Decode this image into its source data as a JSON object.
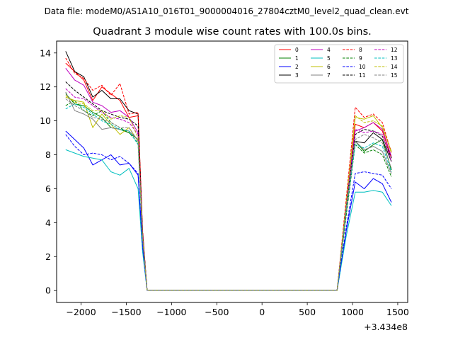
{
  "chart_data": {
    "type": "line",
    "suptitle": "Data file: modeM0/AS1A10_016T01_9000004016_27804cztM0_level2_quad_clean.evt",
    "title": "Quadrant 3 module wise count rates with 100.0s bins.",
    "xlabel": "",
    "ylabel": "",
    "x_offset_label": "+3.434e8",
    "xlim": [
      -2270,
      1610
    ],
    "ylim": [
      -0.7,
      14.7
    ],
    "xticks": [
      -2000,
      -1500,
      -1000,
      -500,
      0,
      500,
      1000,
      1500
    ],
    "xtick_labels": [
      "−2000",
      "−1500",
      "−1000",
      "−500",
      "0",
      "500",
      "1000",
      "1500"
    ],
    "yticks": [
      0,
      2,
      4,
      6,
      8,
      10,
      12,
      14
    ],
    "ytick_labels": [
      "0",
      "2",
      "4",
      "6",
      "8",
      "10",
      "12",
      "14"
    ],
    "legend_position": "top-right",
    "x": [
      -2170,
      -2070,
      -1970,
      -1870,
      -1770,
      -1670,
      -1570,
      -1470,
      -1370,
      -1320,
      -1270,
      -1170,
      -1070,
      -970,
      -870,
      -770,
      -670,
      -570,
      -470,
      -370,
      -270,
      -170,
      -70,
      30,
      130,
      230,
      330,
      430,
      530,
      630,
      730,
      830,
      930,
      1030,
      1130,
      1230,
      1330,
      1430
    ],
    "series": [
      {
        "name": "0",
        "color": "#ff0000",
        "style": "solid",
        "values": [
          13.4,
          12.9,
          12.4,
          11.2,
          12.0,
          11.6,
          11.2,
          10.2,
          10.3,
          3.5,
          0.02,
          0.02,
          0.02,
          0.02,
          0.02,
          0.02,
          0.02,
          0.02,
          0.02,
          0.02,
          0.02,
          0.02,
          0.02,
          0.02,
          0.02,
          0.02,
          0.02,
          0.02,
          0.02,
          0.02,
          0.02,
          0.02,
          5.0,
          9.8,
          9.6,
          9.9,
          9.4,
          7.8
        ]
      },
      {
        "name": "1",
        "color": "#008000",
        "style": "solid",
        "values": [
          11.6,
          11.0,
          10.9,
          10.5,
          10.2,
          9.6,
          9.5,
          9.3,
          8.9,
          3.2,
          0.02,
          0.02,
          0.02,
          0.02,
          0.02,
          0.02,
          0.02,
          0.02,
          0.02,
          0.02,
          0.02,
          0.02,
          0.02,
          0.02,
          0.02,
          0.02,
          0.02,
          0.02,
          0.02,
          0.02,
          0.02,
          0.02,
          4.6,
          8.8,
          8.2,
          8.6,
          8.9,
          7.1
        ]
      },
      {
        "name": "2",
        "color": "#0000ff",
        "style": "solid",
        "values": [
          9.4,
          8.9,
          8.4,
          7.4,
          7.7,
          8.0,
          7.4,
          7.5,
          6.8,
          2.6,
          0.02,
          0.02,
          0.02,
          0.02,
          0.02,
          0.02,
          0.02,
          0.02,
          0.02,
          0.02,
          0.02,
          0.02,
          0.02,
          0.02,
          0.02,
          0.02,
          0.02,
          0.02,
          0.02,
          0.02,
          0.02,
          0.02,
          3.5,
          6.4,
          6.0,
          6.6,
          6.3,
          5.2
        ]
      },
      {
        "name": "3",
        "color": "#000000",
        "style": "solid",
        "values": [
          14.1,
          12.9,
          12.6,
          11.4,
          11.8,
          11.3,
          11.3,
          10.6,
          10.4,
          3.5,
          0.02,
          0.02,
          0.02,
          0.02,
          0.02,
          0.02,
          0.02,
          0.02,
          0.02,
          0.02,
          0.02,
          0.02,
          0.02,
          0.02,
          0.02,
          0.02,
          0.02,
          0.02,
          0.02,
          0.02,
          0.02,
          0.02,
          4.8,
          8.8,
          8.7,
          9.3,
          8.9,
          7.6
        ]
      },
      {
        "name": "4",
        "color": "#bf00bf",
        "style": "solid",
        "values": [
          13.1,
          12.4,
          12.1,
          11.1,
          10.9,
          10.5,
          10.6,
          10.2,
          9.3,
          3.3,
          0.02,
          0.02,
          0.02,
          0.02,
          0.02,
          0.02,
          0.02,
          0.02,
          0.02,
          0.02,
          0.02,
          0.02,
          0.02,
          0.02,
          0.02,
          0.02,
          0.02,
          0.02,
          0.02,
          0.02,
          0.02,
          0.02,
          5.0,
          9.4,
          9.6,
          9.9,
          9.5,
          7.9
        ]
      },
      {
        "name": "5",
        "color": "#00bfbf",
        "style": "solid",
        "values": [
          8.3,
          8.1,
          7.9,
          7.8,
          7.7,
          7.0,
          6.8,
          7.2,
          6.0,
          2.3,
          0.02,
          0.02,
          0.02,
          0.02,
          0.02,
          0.02,
          0.02,
          0.02,
          0.02,
          0.02,
          0.02,
          0.02,
          0.02,
          0.02,
          0.02,
          0.02,
          0.02,
          0.02,
          0.02,
          0.02,
          0.02,
          0.02,
          3.2,
          5.8,
          5.8,
          5.9,
          5.8,
          5.0
        ]
      },
      {
        "name": "6",
        "color": "#bfbf00",
        "style": "solid",
        "values": [
          11.4,
          11.2,
          11.1,
          9.6,
          10.4,
          9.8,
          9.2,
          9.6,
          8.8,
          3.2,
          0.02,
          0.02,
          0.02,
          0.02,
          0.02,
          0.02,
          0.02,
          0.02,
          0.02,
          0.02,
          0.02,
          0.02,
          0.02,
          0.02,
          0.02,
          0.02,
          0.02,
          0.02,
          0.02,
          0.02,
          0.02,
          0.02,
          5.0,
          10.2,
          10.1,
          10.3,
          9.6,
          8.2
        ]
      },
      {
        "name": "7",
        "color": "#808080",
        "style": "solid",
        "values": [
          11.7,
          10.6,
          10.4,
          10.1,
          9.5,
          9.6,
          9.5,
          9.4,
          8.9,
          3.2,
          0.02,
          0.02,
          0.02,
          0.02,
          0.02,
          0.02,
          0.02,
          0.02,
          0.02,
          0.02,
          0.02,
          0.02,
          0.02,
          0.02,
          0.02,
          0.02,
          0.02,
          0.02,
          0.02,
          0.02,
          0.02,
          0.02,
          4.6,
          8.8,
          8.3,
          8.5,
          8.2,
          6.9
        ]
      },
      {
        "name": "8",
        "color": "#ff0000",
        "style": "dashed",
        "values": [
          13.7,
          12.8,
          12.5,
          11.8,
          12.1,
          11.5,
          12.2,
          10.4,
          10.5,
          3.6,
          0.02,
          0.02,
          0.02,
          0.02,
          0.02,
          0.02,
          0.02,
          0.02,
          0.02,
          0.02,
          0.02,
          0.02,
          0.02,
          0.02,
          0.02,
          0.02,
          0.02,
          0.02,
          0.02,
          0.02,
          0.02,
          0.02,
          5.4,
          10.8,
          10.2,
          10.4,
          9.9,
          8.1
        ]
      },
      {
        "name": "9",
        "color": "#008000",
        "style": "dashed",
        "values": [
          10.9,
          11.2,
          10.6,
          10.3,
          10.6,
          9.9,
          9.6,
          9.3,
          8.7,
          3.1,
          0.02,
          0.02,
          0.02,
          0.02,
          0.02,
          0.02,
          0.02,
          0.02,
          0.02,
          0.02,
          0.02,
          0.02,
          0.02,
          0.02,
          0.02,
          0.02,
          0.02,
          0.02,
          0.02,
          0.02,
          0.02,
          0.02,
          4.4,
          8.6,
          8.1,
          8.3,
          8.0,
          6.7
        ]
      },
      {
        "name": "10",
        "color": "#0000ff",
        "style": "dashed",
        "values": [
          9.2,
          8.5,
          8.0,
          8.1,
          8.0,
          7.7,
          7.9,
          7.5,
          6.9,
          2.6,
          0.02,
          0.02,
          0.02,
          0.02,
          0.02,
          0.02,
          0.02,
          0.02,
          0.02,
          0.02,
          0.02,
          0.02,
          0.02,
          0.02,
          0.02,
          0.02,
          0.02,
          0.02,
          0.02,
          0.02,
          0.02,
          0.02,
          3.7,
          6.9,
          7.0,
          6.9,
          6.8,
          6.0
        ]
      },
      {
        "name": "11",
        "color": "#000000",
        "style": "dashed",
        "values": [
          12.3,
          11.8,
          11.4,
          11.0,
          10.6,
          10.4,
          10.2,
          10.1,
          9.7,
          3.4,
          0.02,
          0.02,
          0.02,
          0.02,
          0.02,
          0.02,
          0.02,
          0.02,
          0.02,
          0.02,
          0.02,
          0.02,
          0.02,
          0.02,
          0.02,
          0.02,
          0.02,
          0.02,
          0.02,
          0.02,
          0.02,
          0.02,
          5.0,
          9.2,
          9.5,
          9.4,
          9.1,
          7.8
        ]
      },
      {
        "name": "12",
        "color": "#bf00bf",
        "style": "dashed",
        "values": [
          11.9,
          11.4,
          11.3,
          10.9,
          10.5,
          10.2,
          10.1,
          9.9,
          9.2,
          3.3,
          0.02,
          0.02,
          0.02,
          0.02,
          0.02,
          0.02,
          0.02,
          0.02,
          0.02,
          0.02,
          0.02,
          0.02,
          0.02,
          0.02,
          0.02,
          0.02,
          0.02,
          0.02,
          0.02,
          0.02,
          0.02,
          0.02,
          5.0,
          9.5,
          9.3,
          9.4,
          9.2,
          7.6
        ]
      },
      {
        "name": "13",
        "color": "#00bfbf",
        "style": "dashed",
        "values": [
          10.7,
          11.0,
          10.8,
          10.4,
          10.0,
          9.8,
          9.5,
          9.4,
          8.6,
          3.1,
          0.02,
          0.02,
          0.02,
          0.02,
          0.02,
          0.02,
          0.02,
          0.02,
          0.02,
          0.02,
          0.02,
          0.02,
          0.02,
          0.02,
          0.02,
          0.02,
          0.02,
          0.02,
          0.02,
          0.02,
          0.02,
          0.02,
          4.7,
          8.6,
          8.4,
          8.7,
          8.5,
          7.0
        ]
      },
      {
        "name": "14",
        "color": "#bfbf00",
        "style": "dashed",
        "values": [
          11.5,
          11.1,
          11.0,
          10.6,
          10.6,
          10.1,
          10.3,
          10.2,
          9.0,
          3.2,
          0.02,
          0.02,
          0.02,
          0.02,
          0.02,
          0.02,
          0.02,
          0.02,
          0.02,
          0.02,
          0.02,
          0.02,
          0.02,
          0.02,
          0.02,
          0.02,
          0.02,
          0.02,
          0.02,
          0.02,
          0.02,
          0.02,
          5.2,
          10.3,
          9.9,
          10.0,
          9.7,
          8.1
        ]
      },
      {
        "name": "15",
        "color": "#808080",
        "style": "dashed",
        "values": [
          11.3,
          10.9,
          10.6,
          10.2,
          10.1,
          9.9,
          9.6,
          9.6,
          8.8,
          3.2,
          0.02,
          0.02,
          0.02,
          0.02,
          0.02,
          0.02,
          0.02,
          0.02,
          0.02,
          0.02,
          0.02,
          0.02,
          0.02,
          0.02,
          0.02,
          0.02,
          0.02,
          0.02,
          0.02,
          0.02,
          0.02,
          0.02,
          4.8,
          8.9,
          9.2,
          9.0,
          8.7,
          7.2
        ]
      }
    ]
  }
}
